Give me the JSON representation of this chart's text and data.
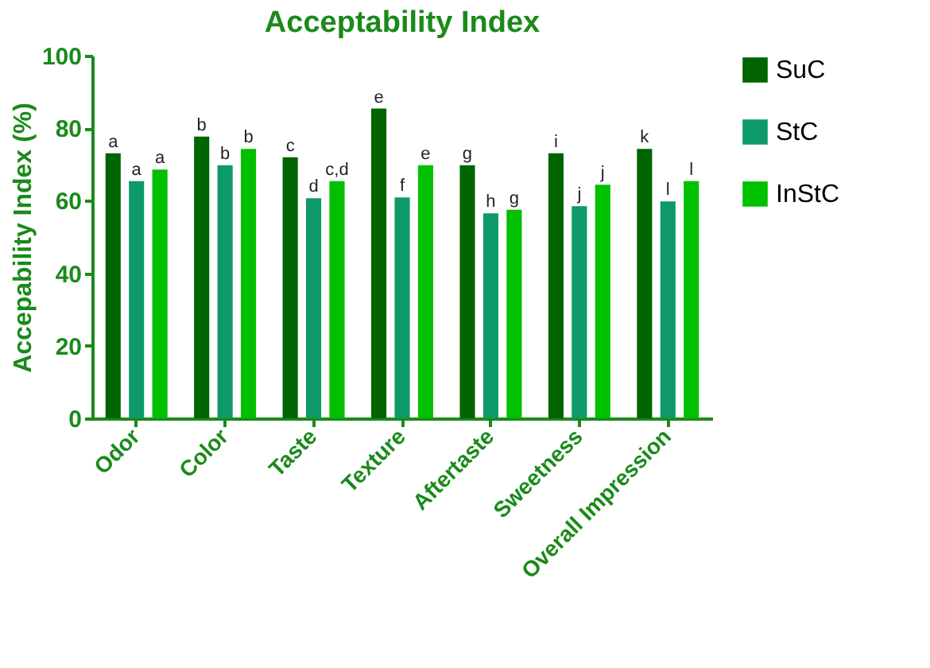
{
  "chart_data": {
    "type": "bar",
    "title": "Acceptability Index",
    "ylabel": "Accepability Index (%)",
    "categories": [
      "Odor",
      "Color",
      "Taste",
      "Texture",
      "Aftertaste",
      "Sweetness",
      "Overall Impression"
    ],
    "series": [
      {
        "name": "SuC",
        "color": "#006400",
        "values": [
          73.1,
          77.7,
          72.0,
          85.4,
          69.8,
          73.1,
          74.3
        ],
        "value_labels": [
          "a",
          "b",
          "c",
          "e",
          "g",
          "i",
          "k"
        ]
      },
      {
        "name": "StC",
        "color": "#0e9a68",
        "values": [
          65.4,
          69.8,
          60.7,
          60.9,
          56.5,
          58.5,
          59.8
        ],
        "value_labels": [
          "a",
          "b",
          "d",
          "f",
          "h",
          "j",
          "l"
        ]
      },
      {
        "name": "InStC",
        "color": "#00c000",
        "values": [
          68.6,
          74.3,
          65.4,
          69.8,
          57.5,
          64.4,
          65.4
        ],
        "value_labels": [
          "a",
          "b",
          "c,d",
          "e",
          "g",
          "j",
          "l"
        ]
      }
    ],
    "ylim": [
      0,
      100
    ],
    "yticks": [
      0,
      20,
      40,
      60,
      80,
      100
    ],
    "grid": false,
    "legend": "right"
  }
}
